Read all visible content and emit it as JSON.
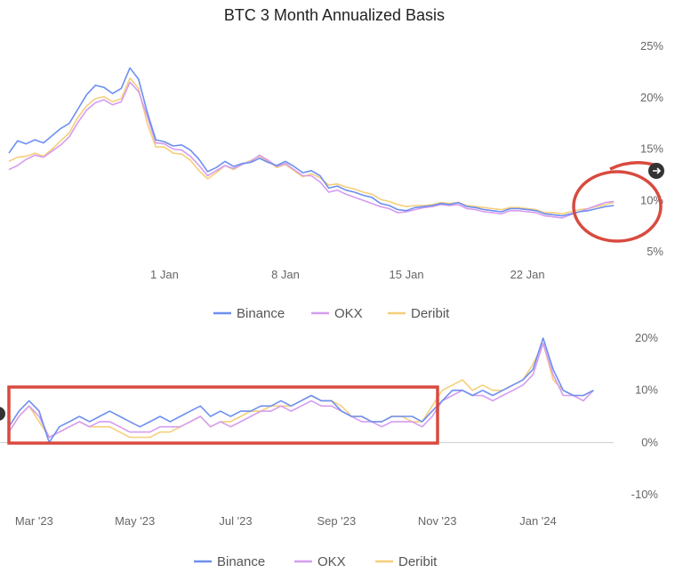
{
  "chart_data": [
    {
      "type": "line",
      "title": "BTC 3 Month Annualized Basis",
      "x_tick_labels": [
        "1 Jan",
        "8 Jan",
        "15 Jan",
        "22 Jan"
      ],
      "y_tick_labels": [
        "25%",
        "20%",
        "15%",
        "10%",
        "5%"
      ],
      "ylim": [
        5,
        25
      ],
      "y_ticks": [
        25,
        20,
        15,
        10,
        5
      ],
      "x_ticks_day": [
        1,
        8,
        15,
        22
      ],
      "xlim_day": [
        -8,
        27.5
      ],
      "grid": false,
      "legend_position": "bottom-center",
      "series": [
        {
          "name": "Binance",
          "color": "#6d8ff0",
          "x_day": [
            -8,
            -7.5,
            -7,
            -6.5,
            -6,
            -5.5,
            -5,
            -4.5,
            -4,
            -3.5,
            -3,
            -2.5,
            -2,
            -1.5,
            -1,
            -0.5,
            0,
            0.5,
            1,
            1.5,
            2,
            2.5,
            3,
            3.5,
            4,
            4.5,
            5,
            5.5,
            6,
            6.5,
            7,
            7.5,
            8,
            8.5,
            9,
            9.5,
            10,
            10.5,
            11,
            11.5,
            12,
            12.5,
            13,
            13.5,
            14,
            14.5,
            15,
            15.5,
            16,
            16.5,
            17,
            17.5,
            18,
            18.5,
            19,
            19.5,
            20,
            20.5,
            21,
            21.5,
            22,
            22.5,
            23,
            23.5,
            24,
            24.5,
            25,
            25.5,
            26,
            26.5,
            27
          ],
          "values": [
            14.6,
            15.8,
            15.5,
            15.9,
            15.6,
            16.3,
            17.0,
            17.5,
            18.9,
            20.3,
            21.2,
            21.0,
            20.4,
            20.9,
            22.9,
            21.8,
            18.6,
            15.9,
            15.7,
            15.3,
            15.4,
            14.9,
            14.0,
            12.8,
            13.2,
            13.8,
            13.3,
            13.6,
            13.7,
            14.1,
            13.7,
            13.4,
            13.8,
            13.3,
            12.7,
            12.9,
            12.4,
            11.2,
            11.4,
            11.0,
            10.8,
            10.5,
            10.3,
            9.7,
            9.5,
            9.1,
            9.0,
            9.3,
            9.4,
            9.5,
            9.7,
            9.6,
            9.8,
            9.4,
            9.3,
            9.1,
            9.0,
            8.9,
            9.2,
            9.2,
            9.1,
            9.0,
            8.7,
            8.6,
            8.5,
            8.7,
            8.9,
            9.0,
            9.2,
            9.4,
            9.5
          ]
        },
        {
          "name": "OKX",
          "color": "#d59cf0",
          "x_day": [
            -8,
            -7.5,
            -7,
            -6.5,
            -6,
            -5.5,
            -5,
            -4.5,
            -4,
            -3.5,
            -3,
            -2.5,
            -2,
            -1.5,
            -1,
            -0.5,
            0,
            0.5,
            1,
            1.5,
            2,
            2.5,
            3,
            3.5,
            4,
            4.5,
            5,
            5.5,
            6,
            6.5,
            7,
            7.5,
            8,
            8.5,
            9,
            9.5,
            10,
            10.5,
            11,
            11.5,
            12,
            12.5,
            13,
            13.5,
            14,
            14.5,
            15,
            15.5,
            16,
            16.5,
            17,
            17.5,
            18,
            18.5,
            19,
            19.5,
            20,
            20.5,
            21,
            21.5,
            22,
            22.5,
            23,
            23.5,
            24,
            24.5,
            25,
            25.5,
            26,
            26.5,
            27
          ],
          "values": [
            13.0,
            13.4,
            14.0,
            14.4,
            14.2,
            14.8,
            15.4,
            16.2,
            17.6,
            18.8,
            19.5,
            19.8,
            19.3,
            19.6,
            21.5,
            20.6,
            18.2,
            15.6,
            15.5,
            15.0,
            14.9,
            14.3,
            13.4,
            12.4,
            12.9,
            13.4,
            13.1,
            13.5,
            13.8,
            14.4,
            13.9,
            13.3,
            13.6,
            13.0,
            12.4,
            12.4,
            11.8,
            10.8,
            11.0,
            10.6,
            10.3,
            10.0,
            9.7,
            9.4,
            9.2,
            8.8,
            8.9,
            9.1,
            9.3,
            9.4,
            9.6,
            9.5,
            9.6,
            9.2,
            9.1,
            8.9,
            8.8,
            8.7,
            9.0,
            9.0,
            8.9,
            8.8,
            8.5,
            8.4,
            8.3,
            8.6,
            8.9,
            9.2,
            9.5,
            9.8,
            9.9
          ]
        },
        {
          "name": "Deribit",
          "color": "#f5cf7a",
          "x_day": [
            -8,
            -7.5,
            -7,
            -6.5,
            -6,
            -5.5,
            -5,
            -4.5,
            -4,
            -3.5,
            -3,
            -2.5,
            -2,
            -1.5,
            -1,
            -0.5,
            0,
            0.5,
            1,
            1.5,
            2,
            2.5,
            3,
            3.5,
            4,
            4.5,
            5,
            5.5,
            6,
            6.5,
            7,
            7.5,
            8,
            8.5,
            9,
            9.5,
            10,
            10.5,
            11,
            11.5,
            12,
            12.5,
            13,
            13.5,
            14,
            14.5,
            15,
            15.5,
            16,
            16.5,
            17,
            17.5,
            18,
            18.5,
            19,
            19.5,
            20,
            20.5,
            21,
            21.5,
            22,
            22.5,
            23,
            23.5,
            24,
            24.5,
            25,
            25.5,
            26,
            26.5,
            27
          ],
          "values": [
            13.8,
            14.2,
            14.3,
            14.6,
            14.3,
            15.0,
            15.8,
            16.6,
            18.1,
            19.2,
            19.9,
            20.1,
            19.6,
            19.9,
            21.9,
            20.9,
            17.5,
            15.2,
            15.2,
            14.6,
            14.5,
            13.9,
            12.9,
            12.1,
            12.7,
            13.4,
            13.0,
            13.5,
            13.9,
            14.3,
            13.8,
            13.2,
            13.5,
            12.9,
            12.3,
            12.6,
            12.2,
            11.5,
            11.6,
            11.3,
            11.1,
            10.8,
            10.6,
            10.1,
            9.9,
            9.6,
            9.4,
            9.5,
            9.5,
            9.6,
            9.8,
            9.7,
            9.8,
            9.5,
            9.4,
            9.3,
            9.2,
            9.1,
            9.3,
            9.3,
            9.2,
            9.1,
            8.8,
            8.8,
            8.7,
            8.9,
            9.1,
            9.2,
            9.4,
            9.6,
            9.8
          ]
        }
      ]
    },
    {
      "type": "line",
      "title": "",
      "x_tick_labels": [
        "Mar '23",
        "May '23",
        "Jul '23",
        "Sep '23",
        "Nov '23",
        "Jan '24"
      ],
      "y_tick_labels": [
        "20%",
        "10%",
        "0%",
        "-10%"
      ],
      "ylim": [
        -10,
        20
      ],
      "y_ticks": [
        20,
        10,
        0,
        -10
      ],
      "x_ticks_month": [
        2,
        4,
        6,
        8,
        10,
        12
      ],
      "xlim_month": [
        1.5,
        13.5
      ],
      "grid": false,
      "zero_line": true,
      "legend_position": "bottom-center",
      "series": [
        {
          "name": "Binance",
          "color": "#6d8ff0",
          "x_month": [
            1.5,
            1.7,
            1.9,
            2.1,
            2.3,
            2.5,
            2.7,
            2.9,
            3.1,
            3.3,
            3.5,
            3.7,
            3.9,
            4.1,
            4.3,
            4.5,
            4.7,
            4.9,
            5.1,
            5.3,
            5.5,
            5.7,
            5.9,
            6.1,
            6.3,
            6.5,
            6.7,
            6.9,
            7.1,
            7.3,
            7.5,
            7.7,
            7.9,
            8.1,
            8.3,
            8.5,
            8.7,
            8.9,
            9.1,
            9.3,
            9.5,
            9.7,
            9.9,
            10.1,
            10.3,
            10.5,
            10.7,
            10.9,
            11.1,
            11.3,
            11.5,
            11.7,
            11.9,
            12.1,
            12.3,
            12.5,
            12.7,
            12.9,
            13.1
          ],
          "values": [
            3,
            6,
            8,
            6,
            0,
            3,
            4,
            5,
            4,
            5,
            6,
            5,
            4,
            3,
            4,
            5,
            4,
            5,
            6,
            7,
            5,
            6,
            5,
            6,
            6,
            7,
            7,
            8,
            7,
            8,
            9,
            8,
            8,
            6,
            5,
            5,
            4,
            4,
            5,
            5,
            5,
            4,
            6,
            8,
            10,
            10,
            9,
            10,
            9,
            10,
            11,
            12,
            14,
            20,
            14,
            10,
            9,
            9,
            10
          ]
        },
        {
          "name": "OKX",
          "color": "#d59cf0",
          "x_month": [
            1.5,
            1.7,
            1.9,
            2.1,
            2.3,
            2.5,
            2.7,
            2.9,
            3.1,
            3.3,
            3.5,
            3.7,
            3.9,
            4.1,
            4.3,
            4.5,
            4.7,
            4.9,
            5.1,
            5.3,
            5.5,
            5.7,
            5.9,
            6.1,
            6.3,
            6.5,
            6.7,
            6.9,
            7.1,
            7.3,
            7.5,
            7.7,
            7.9,
            8.1,
            8.3,
            8.5,
            8.7,
            8.9,
            9.1,
            9.3,
            9.5,
            9.7,
            9.9,
            10.1,
            10.3,
            10.5,
            10.7,
            10.9,
            11.1,
            11.3,
            11.5,
            11.7,
            11.9,
            12.1,
            12.3,
            12.5,
            12.7,
            12.9,
            13.1
          ],
          "values": [
            2,
            5,
            7,
            5,
            1,
            2,
            3,
            4,
            3,
            4,
            4,
            3,
            2,
            2,
            2,
            3,
            3,
            3,
            4,
            5,
            3,
            4,
            3,
            4,
            5,
            6,
            6,
            7,
            6,
            7,
            8,
            7,
            7,
            6,
            5,
            4,
            4,
            3,
            4,
            4,
            4,
            3,
            5,
            8,
            9,
            10,
            9,
            9,
            8,
            9,
            10,
            11,
            13,
            19,
            13,
            9,
            9,
            8,
            10
          ]
        },
        {
          "name": "Deribit",
          "color": "#f5cf7a",
          "x_month": [
            1.5,
            1.7,
            1.9,
            2.1,
            2.3,
            2.5,
            2.7,
            2.9,
            3.1,
            3.3,
            3.5,
            3.7,
            3.9,
            4.1,
            4.3,
            4.5,
            4.7,
            4.9,
            5.1,
            5.3,
            5.5,
            5.7,
            5.9,
            6.1,
            6.3,
            6.5,
            6.7,
            6.9,
            7.1,
            7.3,
            7.5,
            7.7,
            7.9,
            8.1,
            8.3,
            8.5,
            8.7,
            8.9,
            9.1,
            9.3,
            9.5,
            9.7,
            9.9,
            10.1,
            10.3,
            10.5,
            10.7,
            10.9,
            11.1,
            11.3,
            11.5,
            11.7,
            11.9,
            12.1,
            12.3,
            12.5,
            12.7,
            12.9,
            13.1
          ],
          "values": [
            2,
            5,
            7,
            4,
            1,
            2,
            3,
            4,
            3,
            3,
            3,
            2,
            1,
            1,
            1,
            2,
            2,
            3,
            4,
            5,
            3,
            4,
            4,
            5,
            6,
            6,
            7,
            7,
            7,
            8,
            9,
            8,
            8,
            7,
            5,
            5,
            4,
            4,
            5,
            5,
            4,
            4,
            7,
            10,
            11,
            12,
            10,
            11,
            10,
            10,
            11,
            12,
            15,
            19,
            12,
            10,
            9,
            9,
            10
          ]
        }
      ]
    }
  ],
  "overlays": {
    "annotation_color": "#d84a3f",
    "nav_button_color": "#333333"
  }
}
